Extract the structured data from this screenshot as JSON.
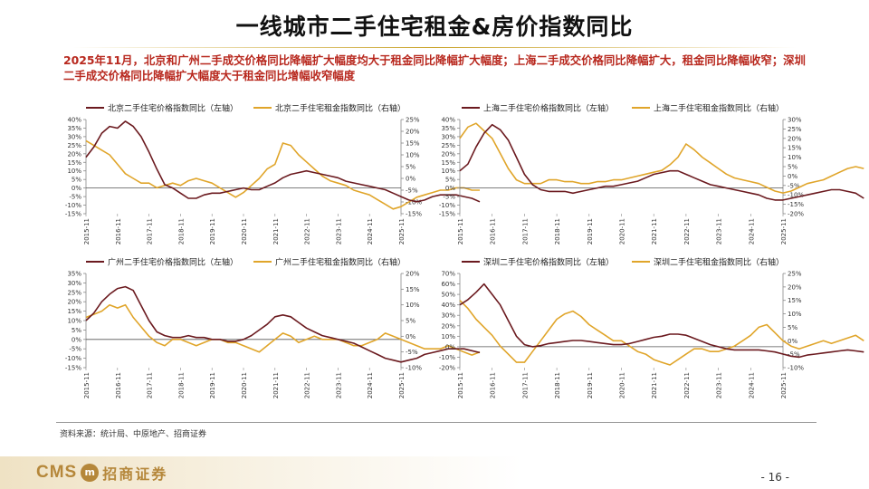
{
  "title": "一线城市二手住宅租金&房价指数同比",
  "subtitle": "2025年11月，北京和广州二手成交价格同比降幅扩大幅度均大于租金同比降幅扩大幅度；上海二手成交价格同比降幅扩大，租金同比降幅收窄；深圳二手成交价格同比降幅扩大幅度大于租金同比增幅收窄幅度",
  "source_note": "资料来源：统计局、中原地产、招商证券",
  "footer": {
    "logo_latin": "CMS",
    "logo_mark": "m",
    "logo_cn": "招商证券",
    "page": "- 16 -"
  },
  "colors": {
    "price": "#6b1a1f",
    "rent": "#e0a52a",
    "zero": "#555555",
    "axis": "#888888"
  },
  "x_tick_labels": [
    "2015-11",
    "2016-11",
    "2017-11",
    "2018-11",
    "2019-11",
    "2020-11",
    "2021-11",
    "2022-11",
    "2023-11",
    "2024-11",
    "2025-11"
  ],
  "chart_data": [
    {
      "id": "bj",
      "type": "line",
      "legend": [
        "北京二手住宅价格指数同比（左轴）",
        "北京二手住宅租金指数同比（右轴）"
      ],
      "left_ticks": [
        "40%",
        "35%",
        "30%",
        "25%",
        "20%",
        "15%",
        "10%",
        "5%",
        "0%",
        "-5%",
        "-10%",
        "-15%"
      ],
      "right_ticks": [
        "25%",
        "20%",
        "15%",
        "10%",
        "5%",
        "0%",
        "-5%",
        "-10%",
        "-15%"
      ],
      "ylim_left": [
        -15,
        40
      ],
      "ylim_right": [
        -15,
        25
      ],
      "x_start": "2015-11",
      "x_end": "2025-11",
      "step_months": 3,
      "series_left": [
        18,
        24,
        32,
        36,
        35,
        39,
        36,
        30,
        21,
        11,
        2,
        0,
        -3,
        -6,
        -6,
        -4,
        -3,
        -3,
        -2,
        -1,
        0,
        -1,
        -1,
        1,
        3,
        6,
        8,
        9,
        10,
        9,
        8,
        7,
        6,
        4,
        3,
        2,
        1,
        0,
        -1,
        -3,
        -5,
        -7,
        -8,
        -7,
        -5,
        -4,
        -4,
        -4,
        -5,
        -6,
        -8
      ],
      "series_right": [
        16,
        14,
        12,
        10,
        6,
        2,
        0,
        -2,
        -2,
        -4,
        -3,
        -2,
        -3,
        -1,
        0,
        -1,
        -2,
        -4,
        -6,
        -8,
        -6,
        -3,
        0,
        4,
        6,
        15,
        14,
        10,
        7,
        4,
        1,
        -1,
        -2,
        -3,
        -5,
        -6,
        -7,
        -9,
        -11,
        -13,
        -12,
        -10,
        -8,
        -7,
        -6,
        -5,
        -5,
        -4,
        -4,
        -5,
        -5
      ]
    },
    {
      "id": "sh",
      "type": "line",
      "legend": [
        "上海二手住宅价格指数同比（左轴）",
        "上海二手住宅租金指数同比（右轴）"
      ],
      "left_ticks": [
        "40%",
        "35%",
        "30%",
        "25%",
        "20%",
        "15%",
        "10%",
        "5%",
        "0%",
        "-5%",
        "-10%",
        "-15%"
      ],
      "right_ticks": [
        "30%",
        "25%",
        "20%",
        "15%",
        "10%",
        "5%",
        "0%",
        "-5%",
        "-10%",
        "-15%",
        "-20%"
      ],
      "ylim_left": [
        -15,
        40
      ],
      "ylim_right": [
        -20,
        30
      ],
      "x_start": "2015-11",
      "x_end": "2025-11",
      "step_months": 3,
      "series_left": [
        10,
        14,
        24,
        32,
        37,
        34,
        28,
        18,
        8,
        2,
        -1,
        -2,
        -2,
        -2,
        -3,
        -2,
        -1,
        0,
        1,
        1,
        2,
        3,
        4,
        6,
        8,
        9,
        10,
        10,
        8,
        6,
        4,
        2,
        1,
        0,
        -1,
        -2,
        -3,
        -4,
        -6,
        -7,
        -7,
        -6,
        -5,
        -4,
        -3,
        -2,
        -1,
        -1,
        -2,
        -3,
        -6
      ],
      "series_right": [
        20,
        26,
        28,
        24,
        20,
        12,
        4,
        -2,
        -4,
        -4,
        -4,
        -2,
        -2,
        -3,
        -3,
        -4,
        -4,
        -3,
        -3,
        -2,
        -2,
        -1,
        0,
        1,
        2,
        3,
        6,
        10,
        17,
        14,
        10,
        7,
        4,
        1,
        -1,
        -2,
        -3,
        -4,
        -6,
        -8,
        -9,
        -8,
        -6,
        -4,
        -3,
        -2,
        0,
        2,
        4,
        5,
        4
      ]
    },
    {
      "id": "gz",
      "type": "line",
      "legend": [
        "广州二手住宅价格指数同比（左轴）",
        "广州二手住宅租金指数同比（右轴）"
      ],
      "left_ticks": [
        "35%",
        "30%",
        "25%",
        "20%",
        "15%",
        "10%",
        "5%",
        "0%",
        "-5%",
        "-10%",
        "-15%"
      ],
      "right_ticks": [
        "20%",
        "15%",
        "10%",
        "5%",
        "0%",
        "-5%",
        "-10%"
      ],
      "ylim_left": [
        -15,
        35
      ],
      "ylim_right": [
        -10,
        20
      ],
      "x_start": "2015-11",
      "x_end": "2025-11",
      "step_months": 3,
      "series_left": [
        10,
        14,
        20,
        24,
        27,
        28,
        26,
        18,
        10,
        4,
        2,
        1,
        1,
        2,
        1,
        1,
        0,
        0,
        -1,
        -1,
        0,
        2,
        5,
        8,
        12,
        13,
        12,
        9,
        6,
        4,
        2,
        1,
        0,
        -1,
        -2,
        -4,
        -6,
        -8,
        -10,
        -11,
        -12,
        -11,
        -10,
        -8,
        -7,
        -6,
        -5,
        -5,
        -5,
        -6,
        -7
      ],
      "series_right": [
        6,
        7,
        8,
        10,
        9,
        10,
        6,
        3,
        0,
        -2,
        -3,
        -1,
        -1,
        -2,
        -3,
        -2,
        -1,
        -1,
        -2,
        -2,
        -3,
        -4,
        -5,
        -3,
        -1,
        1,
        0,
        -2,
        -1,
        0,
        -1,
        -1,
        -1,
        -2,
        -3,
        -3,
        -2,
        -1,
        1,
        0,
        -1,
        -2,
        -3,
        -4,
        -4,
        -4,
        -3,
        -4,
        -5,
        -6,
        -5
      ]
    },
    {
      "id": "sz",
      "type": "line",
      "legend": [
        "深圳二手住宅价格指数同比（左轴）",
        "深圳二手住宅租金指数同比（右轴）"
      ],
      "left_ticks": [
        "70%",
        "60%",
        "50%",
        "40%",
        "30%",
        "20%",
        "10%",
        "0%",
        "-10%",
        "-20%"
      ],
      "right_ticks": [
        "25%",
        "20%",
        "15%",
        "10%",
        "5%",
        "0%",
        "-5%",
        "-10%"
      ],
      "ylim_left": [
        -20,
        70
      ],
      "ylim_right": [
        -10,
        25
      ],
      "x_start": "2015-11",
      "x_end": "2025-11",
      "step_months": 3,
      "series_left": [
        40,
        45,
        52,
        60,
        50,
        40,
        25,
        10,
        2,
        0,
        1,
        3,
        4,
        5,
        6,
        6,
        5,
        4,
        3,
        2,
        2,
        3,
        5,
        7,
        9,
        10,
        12,
        12,
        11,
        8,
        5,
        2,
        0,
        -2,
        -3,
        -3,
        -3,
        -3,
        -4,
        -5,
        -7,
        -9,
        -10,
        -8,
        -7,
        -6,
        -5,
        -4,
        -3,
        -4,
        -5
      ],
      "series_right": [
        15,
        12,
        8,
        5,
        2,
        -2,
        -5,
        -8,
        -8,
        -4,
        0,
        4,
        8,
        10,
        11,
        9,
        6,
        4,
        2,
        0,
        0,
        -2,
        -4,
        -5,
        -7,
        -8,
        -9,
        -7,
        -5,
        -3,
        -3,
        -4,
        -4,
        -3,
        -2,
        0,
        2,
        5,
        6,
        3,
        0,
        -2,
        -3,
        -2,
        -1,
        0,
        -1,
        0,
        1,
        2,
        0
      ]
    }
  ]
}
